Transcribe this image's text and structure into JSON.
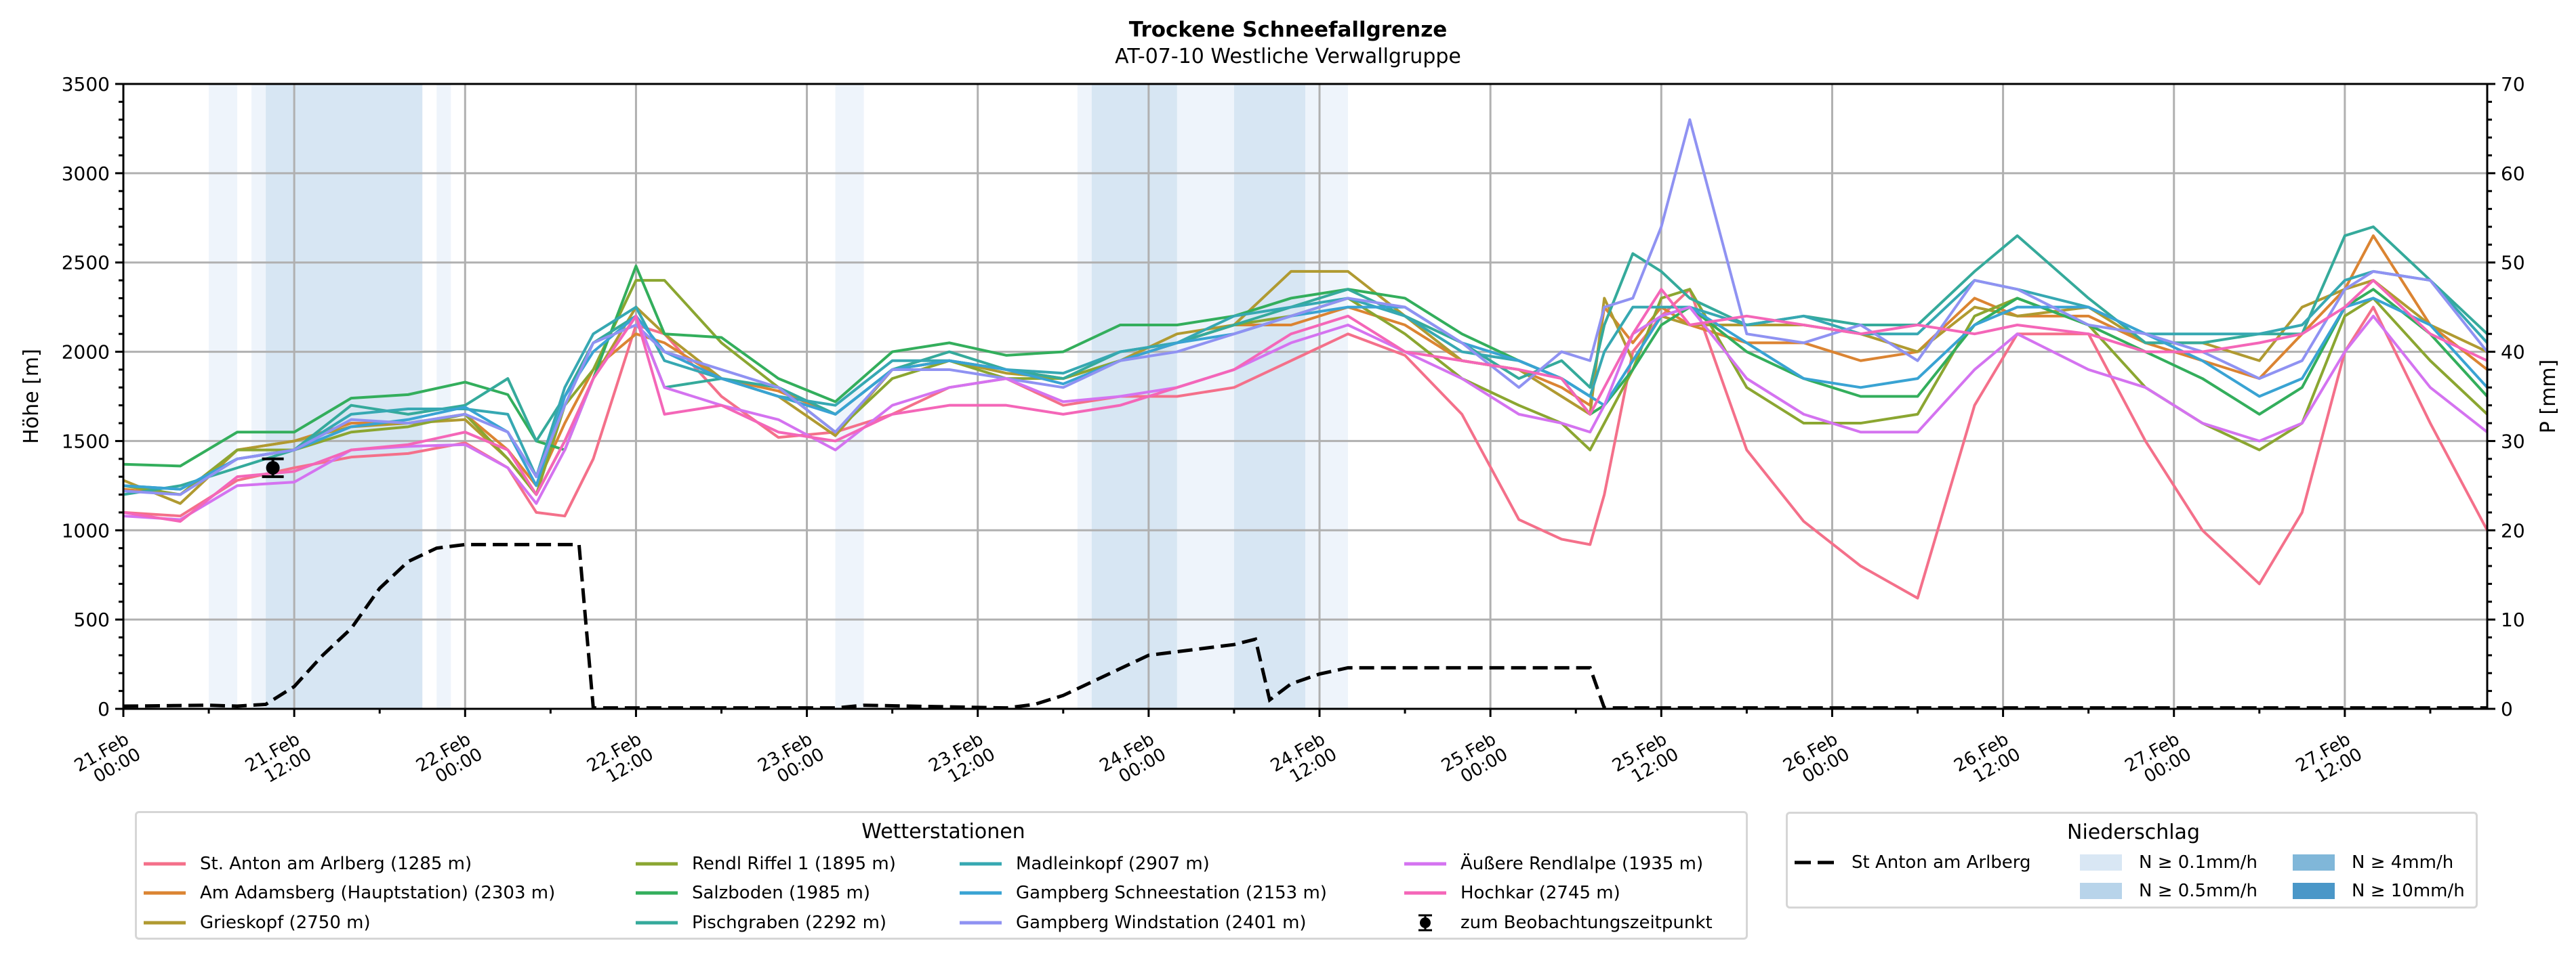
{
  "title": "Trockene Schneefallgrenze",
  "subtitle": "AT-07-10 Westliche Verwallgruppe",
  "chart_data": {
    "type": "line",
    "title": "Trockene Schneefallgrenze",
    "subtitle": "AT-07-10 Westliche Verwallgruppe",
    "ylabel": "Höhe [m]",
    "ylabel_right": "P [mm]",
    "ylim": [
      0,
      3500
    ],
    "ylim_right": [
      0,
      70
    ],
    "yticks": [
      0,
      500,
      1000,
      1500,
      2000,
      2500,
      3000,
      3500
    ],
    "yticks_right": [
      0,
      10,
      20,
      30,
      40,
      50,
      60,
      70
    ],
    "xlim_hours": [
      0,
      166
    ],
    "grid": true,
    "xticks": [
      {
        "t": 0,
        "day": "21.Feb",
        "time": "00:00"
      },
      {
        "t": 12,
        "day": "21.Feb",
        "time": "12:00"
      },
      {
        "t": 24,
        "day": "22.Feb",
        "time": "00:00"
      },
      {
        "t": 36,
        "day": "22.Feb",
        "time": "12:00"
      },
      {
        "t": 48,
        "day": "23.Feb",
        "time": "00:00"
      },
      {
        "t": 60,
        "day": "23.Feb",
        "time": "12:00"
      },
      {
        "t": 72,
        "day": "24.Feb",
        "time": "00:00"
      },
      {
        "t": 84,
        "day": "24.Feb",
        "time": "12:00"
      },
      {
        "t": 96,
        "day": "25.Feb",
        "time": "00:00"
      },
      {
        "t": 108,
        "day": "25.Feb",
        "time": "12:00"
      },
      {
        "t": 120,
        "day": "26.Feb",
        "time": "00:00"
      },
      {
        "t": 132,
        "day": "26.Feb",
        "time": "12:00"
      },
      {
        "t": 144,
        "day": "27.Feb",
        "time": "00:00"
      },
      {
        "t": 156,
        "day": "27.Feb",
        "time": "12:00"
      }
    ],
    "x_hours": [
      0,
      4,
      8,
      12,
      16,
      20,
      24,
      27,
      29,
      31,
      33,
      36,
      38,
      42,
      46,
      50,
      54,
      58,
      62,
      66,
      70,
      74,
      78,
      82,
      86,
      90,
      94,
      98,
      101,
      103,
      104,
      106,
      108,
      110,
      114,
      118,
      122,
      126,
      130,
      133,
      138,
      142,
      146,
      150,
      153,
      156,
      158,
      162,
      166
    ],
    "series": [
      {
        "name": "St. Anton am Arlberg (1285 m)",
        "color": "#f4708a",
        "values": [
          1100,
          1080,
          1280,
          1350,
          1410,
          1430,
          1490,
          1350,
          1100,
          1080,
          1400,
          2150,
          2100,
          1750,
          1520,
          1550,
          1650,
          1800,
          1850,
          1700,
          1750,
          1750,
          1800,
          1950,
          2100,
          1980,
          1650,
          1060,
          950,
          920,
          1200,
          2000,
          2200,
          2350,
          1450,
          1050,
          800,
          620,
          1700,
          2100,
          2100,
          1500,
          1000,
          700,
          1100,
          2000,
          2250,
          1600,
          1000
        ]
      },
      {
        "name": "Am Adamsberg (Hauptstation) (2303 m)",
        "color": "#db8432",
        "values": [
          1230,
          1200,
          1450,
          1500,
          1600,
          1600,
          1650,
          1450,
          1250,
          1600,
          1900,
          2100,
          2050,
          1850,
          1780,
          1650,
          1900,
          1950,
          1900,
          1850,
          1950,
          2050,
          2150,
          2150,
          2250,
          2150,
          1950,
          1900,
          1800,
          1700,
          2250,
          2050,
          2250,
          2150,
          2050,
          2050,
          1950,
          2000,
          2300,
          2200,
          2200,
          2050,
          1950,
          1850,
          2100,
          2350,
          2650,
          2150,
          1900
        ]
      },
      {
        "name": "Grieskopf (2750 m)",
        "color": "#b09a31",
        "values": [
          1280,
          1150,
          1450,
          1500,
          1580,
          1600,
          1620,
          1400,
          1200,
          1500,
          1850,
          2250,
          2100,
          1850,
          1750,
          1530,
          1900,
          1950,
          1880,
          1850,
          1950,
          2100,
          2150,
          2450,
          2450,
          2200,
          1950,
          1900,
          1750,
          1650,
          2300,
          1950,
          2200,
          2150,
          2150,
          2150,
          2100,
          2000,
          2250,
          2200,
          2250,
          2050,
          2050,
          1950,
          2250,
          2350,
          2400,
          2150,
          2000
        ]
      },
      {
        "name": "Rendl Riffel 1 (1895 m)",
        "color": "#8ba631",
        "values": [
          1250,
          1200,
          1450,
          1450,
          1550,
          1580,
          1650,
          1400,
          1200,
          1700,
          1900,
          2400,
          2400,
          2050,
          1800,
          1550,
          1850,
          1950,
          1850,
          1850,
          1950,
          2050,
          2150,
          2200,
          2300,
          2100,
          1850,
          1700,
          1600,
          1450,
          1600,
          1900,
          2300,
          2350,
          1800,
          1600,
          1600,
          1650,
          2200,
          2300,
          2150,
          1800,
          1600,
          1450,
          1600,
          2200,
          2300,
          1950,
          1650
        ]
      },
      {
        "name": "Salzboden (1985 m)",
        "color": "#33ae5c",
        "values": [
          1370,
          1360,
          1550,
          1550,
          1740,
          1760,
          1830,
          1760,
          1500,
          1450,
          1850,
          2480,
          2100,
          2080,
          1850,
          1720,
          2000,
          2050,
          1980,
          2000,
          2150,
          2150,
          2200,
          2300,
          2350,
          2300,
          2100,
          1950,
          1850,
          1650,
          1700,
          1900,
          2150,
          2250,
          2000,
          1850,
          1750,
          1750,
          2150,
          2300,
          2150,
          2000,
          1850,
          1650,
          1800,
          2250,
          2350,
          2100,
          1750
        ]
      },
      {
        "name": "Pischgraben (2292 m)",
        "color": "#35aa9b",
        "values": [
          1200,
          1250,
          1350,
          1450,
          1700,
          1650,
          1700,
          1850,
          1500,
          1750,
          2050,
          2200,
          1800,
          1850,
          1800,
          1650,
          1900,
          2000,
          1900,
          1850,
          2000,
          2050,
          2150,
          2250,
          2350,
          2200,
          2050,
          1850,
          1950,
          1800,
          2150,
          2550,
          2450,
          2300,
          2150,
          2200,
          2150,
          2150,
          2450,
          2650,
          2300,
          2050,
          2050,
          2100,
          2100,
          2650,
          2700,
          2400,
          2100
        ]
      },
      {
        "name": "Madleinkopf (2907 m)",
        "color": "#36a8b2",
        "values": [
          1250,
          1230,
          1400,
          1450,
          1650,
          1680,
          1680,
          1650,
          1300,
          1800,
          2100,
          2250,
          1950,
          1850,
          1750,
          1700,
          1950,
          1950,
          1900,
          1880,
          2000,
          2050,
          2200,
          2250,
          2300,
          2200,
          2000,
          1950,
          1850,
          1750,
          2000,
          2250,
          2250,
          2250,
          2150,
          2200,
          2100,
          2100,
          2400,
          2350,
          2250,
          2100,
          2100,
          2100,
          2150,
          2400,
          2450,
          2400,
          2050
        ]
      },
      {
        "name": "Gampberg Schneestation (2153 m)",
        "color": "#39a3d3",
        "values": [
          1250,
          1230,
          1400,
          1450,
          1580,
          1620,
          1690,
          1550,
          1250,
          1750,
          2000,
          2200,
          2000,
          1850,
          1750,
          1650,
          1900,
          1950,
          1900,
          1820,
          1950,
          2050,
          2100,
          2200,
          2250,
          2250,
          2050,
          1950,
          1850,
          1750,
          1700,
          1950,
          2200,
          2250,
          2050,
          1850,
          1800,
          1850,
          2150,
          2250,
          2250,
          2100,
          1950,
          1750,
          1850,
          2250,
          2300,
          2150,
          1800
        ]
      },
      {
        "name": "Gampberg Windstation (2401 m)",
        "color": "#8f92f2",
        "values": [
          1220,
          1200,
          1400,
          1450,
          1620,
          1600,
          1650,
          1550,
          1300,
          1700,
          2050,
          2150,
          2000,
          1900,
          1800,
          1550,
          1900,
          1900,
          1850,
          1800,
          1950,
          2000,
          2100,
          2200,
          2300,
          2250,
          2050,
          1800,
          2000,
          1950,
          2250,
          2300,
          2700,
          3300,
          2100,
          2050,
          2150,
          1950,
          2400,
          2350,
          2150,
          2100,
          2000,
          1850,
          1950,
          2350,
          2450,
          2400,
          2000
        ]
      },
      {
        "name": "Äußere Rendlalpe (1935 m)",
        "color": "#d473f0",
        "values": [
          1080,
          1060,
          1250,
          1270,
          1450,
          1470,
          1480,
          1350,
          1150,
          1450,
          1850,
          2200,
          1800,
          1700,
          1620,
          1450,
          1700,
          1800,
          1850,
          1720,
          1750,
          1800,
          1900,
          2050,
          2150,
          2000,
          1850,
          1650,
          1600,
          1550,
          1700,
          2100,
          2200,
          2250,
          1850,
          1650,
          1550,
          1550,
          1900,
          2100,
          1900,
          1800,
          1600,
          1500,
          1600,
          2000,
          2200,
          1800,
          1550
        ]
      },
      {
        "name": "Hochkar (2745 m)",
        "color": "#f466b8",
        "values": [
          1100,
          1050,
          1300,
          1330,
          1450,
          1480,
          1550,
          1450,
          1200,
          1500,
          1850,
          2200,
          1650,
          1700,
          1550,
          1500,
          1650,
          1700,
          1700,
          1650,
          1700,
          1800,
          1900,
          2100,
          2200,
          2000,
          1950,
          1900,
          1850,
          1650,
          1800,
          2100,
          2350,
          2150,
          2200,
          2150,
          2100,
          2150,
          2100,
          2150,
          2100,
          2000,
          2000,
          2050,
          2100,
          2250,
          2400,
          2100,
          1950
        ]
      }
    ],
    "precip": {
      "name": "St Anton am Arlberg",
      "unit": "mm",
      "x_hours": [
        0,
        6,
        8,
        10,
        12,
        14,
        16,
        18,
        20,
        22,
        24,
        32,
        33,
        50,
        52,
        62,
        64,
        66,
        68,
        70,
        72,
        75,
        78,
        79.5,
        80.5,
        82,
        84,
        86,
        103,
        104,
        166
      ],
      "values": [
        0.3,
        0.4,
        0.3,
        0.5,
        2.5,
        6,
        9,
        13.5,
        16.5,
        18,
        18.4,
        18.4,
        0.1,
        0.1,
        0.4,
        0.1,
        0.5,
        1.5,
        3,
        4.5,
        6,
        6.6,
        7.2,
        7.8,
        1,
        2.8,
        3.9,
        4.6,
        4.6,
        0.1,
        0.1
      ]
    },
    "precip_bands": [
      {
        "start": 6,
        "end": 8,
        "level": 0
      },
      {
        "start": 9,
        "end": 10,
        "level": 0
      },
      {
        "start": 10,
        "end": 21,
        "level": 1
      },
      {
        "start": 22,
        "end": 23,
        "level": 0
      },
      {
        "start": 50,
        "end": 52,
        "level": 0
      },
      {
        "start": 67,
        "end": 68,
        "level": 0
      },
      {
        "start": 68,
        "end": 74,
        "level": 1
      },
      {
        "start": 74,
        "end": 78,
        "level": 0
      },
      {
        "start": 78,
        "end": 83,
        "level": 1
      },
      {
        "start": 83,
        "end": 86,
        "level": 0
      }
    ],
    "precip_levels": [
      {
        "label": "N ≥ 0.1mm/h",
        "color": "#d9e7f4",
        "band_color": "#eef4fb"
      },
      {
        "label": "N ≥ 0.5mm/h",
        "color": "#b8d4ea",
        "band_color": "#d7e6f3"
      },
      {
        "label": "N ≥ 4mm/h",
        "color": "#80b7d9",
        "band_color": "#a9cde6"
      },
      {
        "label": "N ≥ 10mm/h",
        "color": "#4a97c8",
        "band_color": "#6fa9d4"
      }
    ],
    "observation": {
      "t": 10.5,
      "value": 1350,
      "err_low": 1300,
      "err_high": 1400,
      "label": "zum Beobachtungszeitpunkt"
    },
    "legend_stations_title": "Wetterstationen",
    "legend_precip_title": "Niederschlag",
    "legend_placement": "bottom"
  }
}
